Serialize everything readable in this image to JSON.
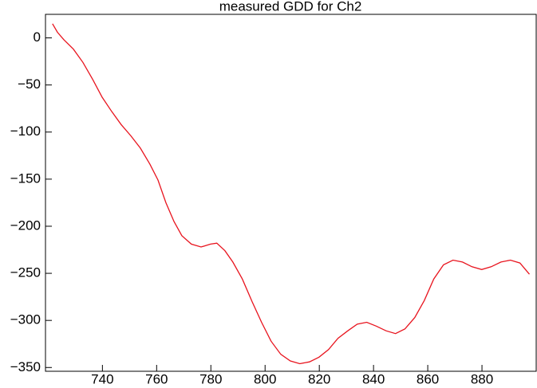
{
  "chart_data": {
    "type": "line",
    "title": "measured GDD for Ch2",
    "x": [
      721.6,
      723.4,
      725.8,
      729.3,
      732.8,
      736.4,
      739.9,
      743.4,
      746.9,
      750.5,
      754,
      757.5,
      760.5,
      763.4,
      766.4,
      769.3,
      772.8,
      776.4,
      779.9,
      782.2,
      785.2,
      788.1,
      791.6,
      795.2,
      798.7,
      802.2,
      805.8,
      809.3,
      812.8,
      816.4,
      819.9,
      823.4,
      826.9,
      830.5,
      834,
      837.5,
      841,
      844.6,
      848.1,
      851.6,
      855.2,
      858.7,
      862.2,
      865.8,
      869.3,
      872.8,
      876.3,
      879.9,
      883.4,
      887,
      890.5,
      894,
      897.5
    ],
    "series": [
      {
        "color": "#e8141e",
        "values": [
          15,
          6,
          -2,
          -12,
          -26,
          -44,
          -63,
          -78,
          -92,
          -104,
          -117,
          -134,
          -151,
          -175,
          -195,
          -210,
          -219,
          -222,
          -219,
          -218,
          -226,
          -238,
          -256,
          -280,
          -302,
          -322,
          -336,
          -343,
          -346,
          -344,
          -339,
          -331,
          -319,
          -311,
          -304,
          -302,
          -306,
          -311,
          -314,
          -309,
          -297,
          -279,
          -256,
          -241,
          -236,
          -238,
          -243,
          -246,
          -243,
          -238,
          -236,
          -239,
          -251
        ]
      }
    ],
    "xlim": [
      719,
      900
    ],
    "xticks": [
      740,
      760,
      780,
      800,
      820,
      840,
      860,
      880
    ],
    "ylim": [
      -354,
      25
    ],
    "yticks": [
      0,
      {
        "value": -50,
        "label": "−50"
      },
      {
        "value": -100,
        "label": "−100"
      },
      {
        "value": -150,
        "label": "−150"
      },
      {
        "value": -200,
        "label": "−200"
      },
      {
        "value": -250,
        "label": "−250"
      },
      {
        "value": -300,
        "label": "−300"
      },
      {
        "value": -350,
        "label": "−350"
      }
    ],
    "grid": false
  }
}
